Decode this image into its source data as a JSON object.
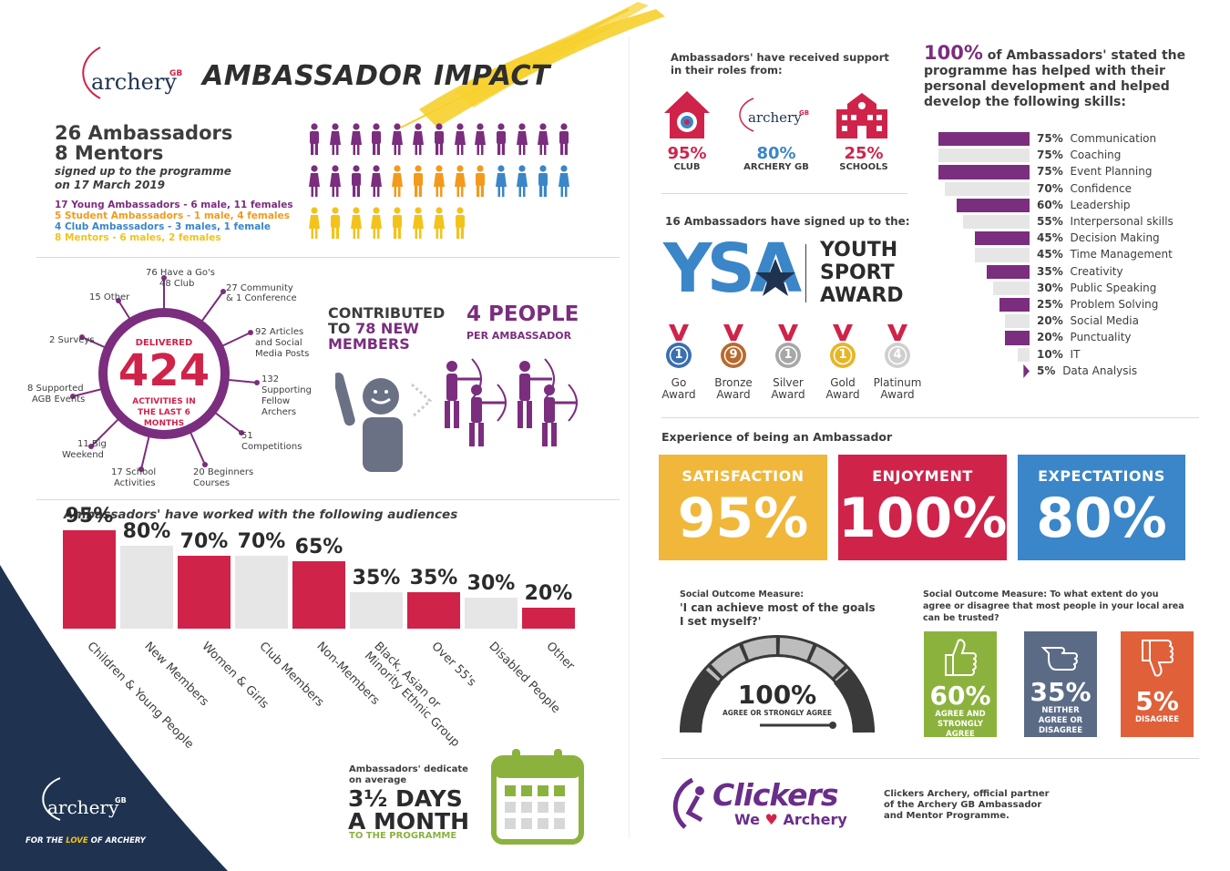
{
  "header": {
    "brand": "archery",
    "brand_sup": "GB",
    "title": "AMBASSADOR IMPACT"
  },
  "summary": {
    "ambassadors": "26 Ambassadors",
    "mentors": "8 Mentors",
    "signed_line1": "signed up to the programme",
    "signed_line2": "on 17 March 2019",
    "legend": [
      {
        "text": "17 Young Ambassadors - 6 male, 11 females",
        "color": "#7b2d7e"
      },
      {
        "text": "5 Student Ambassadors - 1 male, 4 females",
        "color": "#f39a1c"
      },
      {
        "text": "4 Club Ambassadors - 3 males, 1 female",
        "color": "#3a86c8"
      },
      {
        "text": "8 Mentors - 6 males, 2 females",
        "color": "#f3c31c"
      }
    ]
  },
  "activities": {
    "delivered": "DELIVERED",
    "total": "424",
    "caption": "ACTIVITIES IN THE LAST 6 MONTHS",
    "spokes": [
      "76 Have a Go's",
      "48 Club",
      "27 Community",
      "& 1 Conference",
      "92 Articles",
      "and Social",
      "Media Posts",
      "132",
      "Supporting",
      "Fellow",
      "Archers",
      "51",
      "Competitions",
      "20 Beginners",
      "Courses",
      "17 School",
      "Activities",
      "11 Big",
      "Weekend",
      "8 Supported",
      "AGB Events",
      "2 Surveys",
      "15 Other"
    ]
  },
  "contributed": {
    "line1": "CONTRIBUTED",
    "line2a": "TO",
    "line2b": "78 NEW",
    "line3": "MEMBERS",
    "people": "4 PEOPLE",
    "per": "PER AMBASSADOR"
  },
  "audiences": {
    "title": "Ambassadors' have worked with the following audiences"
  },
  "chart_data": {
    "type": "bar",
    "categories": [
      "Children & Young People",
      "New Members",
      "Women & Girls",
      "Club Members",
      "Non-Members",
      "Black, Asian or Minority Ethnic Group",
      "Over 55's",
      "Disabled People",
      "Other"
    ],
    "values": [
      95,
      80,
      70,
      70,
      65,
      35,
      35,
      30,
      20
    ],
    "labels": [
      "95%",
      "80%",
      "70%",
      "70%",
      "65%",
      "35%",
      "35%",
      "30%",
      "20%"
    ],
    "colors": [
      "#d0234a",
      "#e6e6e6",
      "#d0234a",
      "#e6e6e6",
      "#d0234a",
      "#e6e6e6",
      "#d0234a",
      "#e6e6e6",
      "#d0234a"
    ]
  },
  "dedicate": {
    "line1": "Ambassadors' dedicate",
    "line2": "on average",
    "big1": "3½ DAYS",
    "big2": "A MONTH",
    "sub": "TO THE PROGRAMME"
  },
  "footer_left": {
    "brand": "archery",
    "brand_sup": "GB",
    "tagline_a": "FOR THE ",
    "tagline_b": "LOVE",
    "tagline_c": " OF ARCHERY"
  },
  "support": {
    "intro1": "Ambassadors' have received support",
    "intro2": "in their roles from:",
    "items": [
      {
        "value": "95%",
        "label": "CLUB"
      },
      {
        "value": "80%",
        "label": "ARCHERY GB"
      },
      {
        "value": "25%",
        "label": "SCHOOLS"
      }
    ]
  },
  "ysa": {
    "intro": "16 Ambassadors have signed up to the:",
    "logo": "YSA",
    "name1": "YOUTH",
    "name2": "SPORT",
    "name3": "AWARD",
    "awards": [
      {
        "count": "1",
        "label1": "Go",
        "label2": "Award",
        "color": "#3a6fb0"
      },
      {
        "count": "9",
        "label1": "Bronze",
        "label2": "Award",
        "color": "#b86a2d"
      },
      {
        "count": "1",
        "label1": "Silver",
        "label2": "Award",
        "color": "#a7a7a7"
      },
      {
        "count": "1",
        "label1": "Gold",
        "label2": "Award",
        "color": "#e8b526"
      },
      {
        "count": "4",
        "label1": "Platinum",
        "label2": "Award",
        "color": "#cfcfcf"
      }
    ]
  },
  "skills": {
    "headline_pct": "100%",
    "headline_a": " of Ambassadors' stated the",
    "headline_b": "programme has helped with their",
    "headline_c": "personal development and helped",
    "headline_d": "develop the following skills:",
    "items": [
      {
        "pct": "75%",
        "name": "Communication",
        "value": 75
      },
      {
        "pct": "75%",
        "name": "Coaching",
        "value": 75
      },
      {
        "pct": "75%",
        "name": "Event Planning",
        "value": 75
      },
      {
        "pct": "70%",
        "name": "Confidence",
        "value": 70
      },
      {
        "pct": "60%",
        "name": "Leadership",
        "value": 60
      },
      {
        "pct": "55%",
        "name": "Interpersonal skills",
        "value": 55
      },
      {
        "pct": "45%",
        "name": "Decision Making",
        "value": 45
      },
      {
        "pct": "45%",
        "name": "Time Management",
        "value": 45
      },
      {
        "pct": "35%",
        "name": "Creativity",
        "value": 35
      },
      {
        "pct": "30%",
        "name": "Public Speaking",
        "value": 30
      },
      {
        "pct": "25%",
        "name": "Problem Solving",
        "value": 25
      },
      {
        "pct": "20%",
        "name": "Social Media",
        "value": 20
      },
      {
        "pct": "20%",
        "name": "Punctuality",
        "value": 20
      },
      {
        "pct": "10%",
        "name": "IT",
        "value": 10
      },
      {
        "pct": "5%",
        "name": "Data Analysis",
        "value": 5
      }
    ]
  },
  "experience": {
    "title": "Experience of being an Ambassador",
    "items": [
      {
        "title": "SATISFACTION",
        "value": "95%",
        "color": "#f0b73a"
      },
      {
        "title": "ENJOYMENT",
        "value": "100%",
        "color": "#d0234a"
      },
      {
        "title": "EXPECTATIONS",
        "value": "80%",
        "color": "#3a86c8"
      }
    ]
  },
  "goals": {
    "label": "Social Outcome Measure:",
    "q1": "'I can achieve most of the goals",
    "q2": "I set myself?'",
    "value": "100%",
    "caption": "AGREE OR STRONGLY AGREE",
    "gauge_level": 1.0
  },
  "trust": {
    "q1": "Social Outcome Measure: To what extent do you",
    "q2": "agree or disagree that most people in your local area",
    "q3": "can be trusted?",
    "items": [
      {
        "value": "60%",
        "l1": "AGREE AND",
        "l2": "STRONGLY",
        "l3": "AGREE",
        "color": "#8cb23e",
        "icon": "thumbs-up-icon"
      },
      {
        "value": "35%",
        "l1": "NEITHER",
        "l2": "AGREE OR",
        "l3": "DISAGREE",
        "color": "#5b6b86",
        "icon": "thumbs-sideways-icon"
      },
      {
        "value": "5%",
        "l1": "DISAGREE",
        "l2": "",
        "l3": "",
        "color": "#e0603a",
        "icon": "thumbs-down-icon"
      }
    ]
  },
  "partner": {
    "logo": "Clickers",
    "we": "We",
    "archery": "Archery",
    "text1": "Clickers Archery, official partner",
    "text2": "of the Archery GB Ambassador",
    "text3": "and Mentor Programme."
  }
}
